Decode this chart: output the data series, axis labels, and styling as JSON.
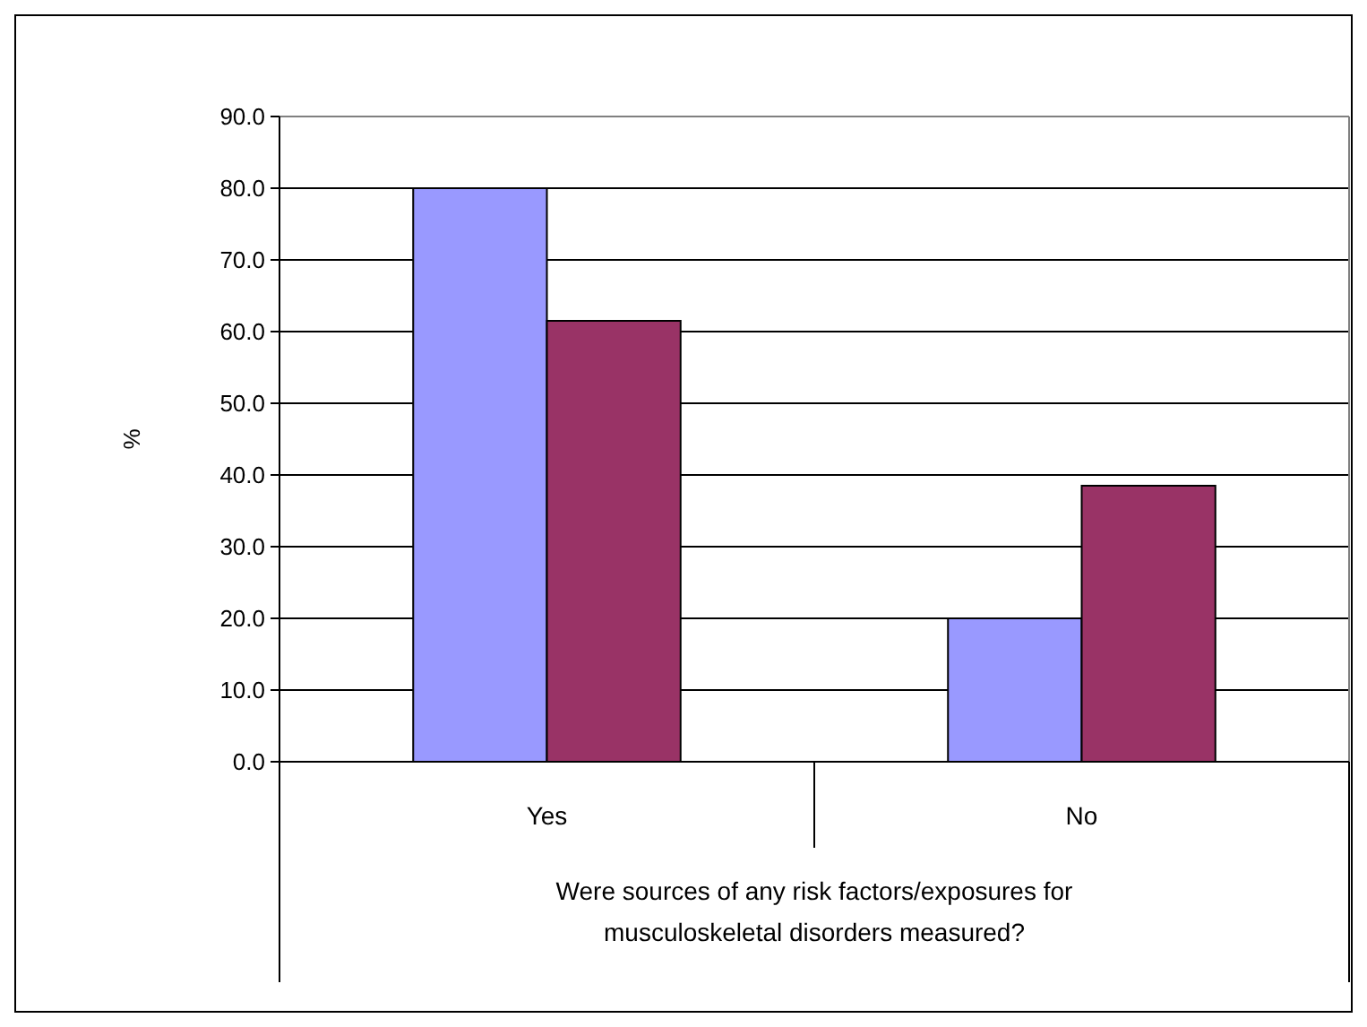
{
  "chart_data": {
    "type": "bar",
    "ylabel": "%",
    "xlabel": "Were sources of any risk factors/exposures for musculoskeletal disorders measured?",
    "categories": [
      "Yes",
      "No"
    ],
    "series": [
      {
        "color": "#9999ff",
        "values": [
          80.0,
          20.0
        ]
      },
      {
        "color": "#993366",
        "values": [
          61.5,
          38.5
        ]
      }
    ],
    "ylim": [
      0,
      90
    ],
    "yticks": [
      {
        "value": 0,
        "label": "0.0"
      },
      {
        "value": 10,
        "label": "10.0"
      },
      {
        "value": 20,
        "label": "20.0"
      },
      {
        "value": 30,
        "label": "30.0"
      },
      {
        "value": 40,
        "label": "40.0"
      },
      {
        "value": 50,
        "label": "50.0"
      },
      {
        "value": 60,
        "label": "60.0"
      },
      {
        "value": 70,
        "label": "70.0"
      },
      {
        "value": 80,
        "label": "80.0"
      },
      {
        "value": 90,
        "label": "90.0"
      }
    ],
    "grid": "y"
  }
}
